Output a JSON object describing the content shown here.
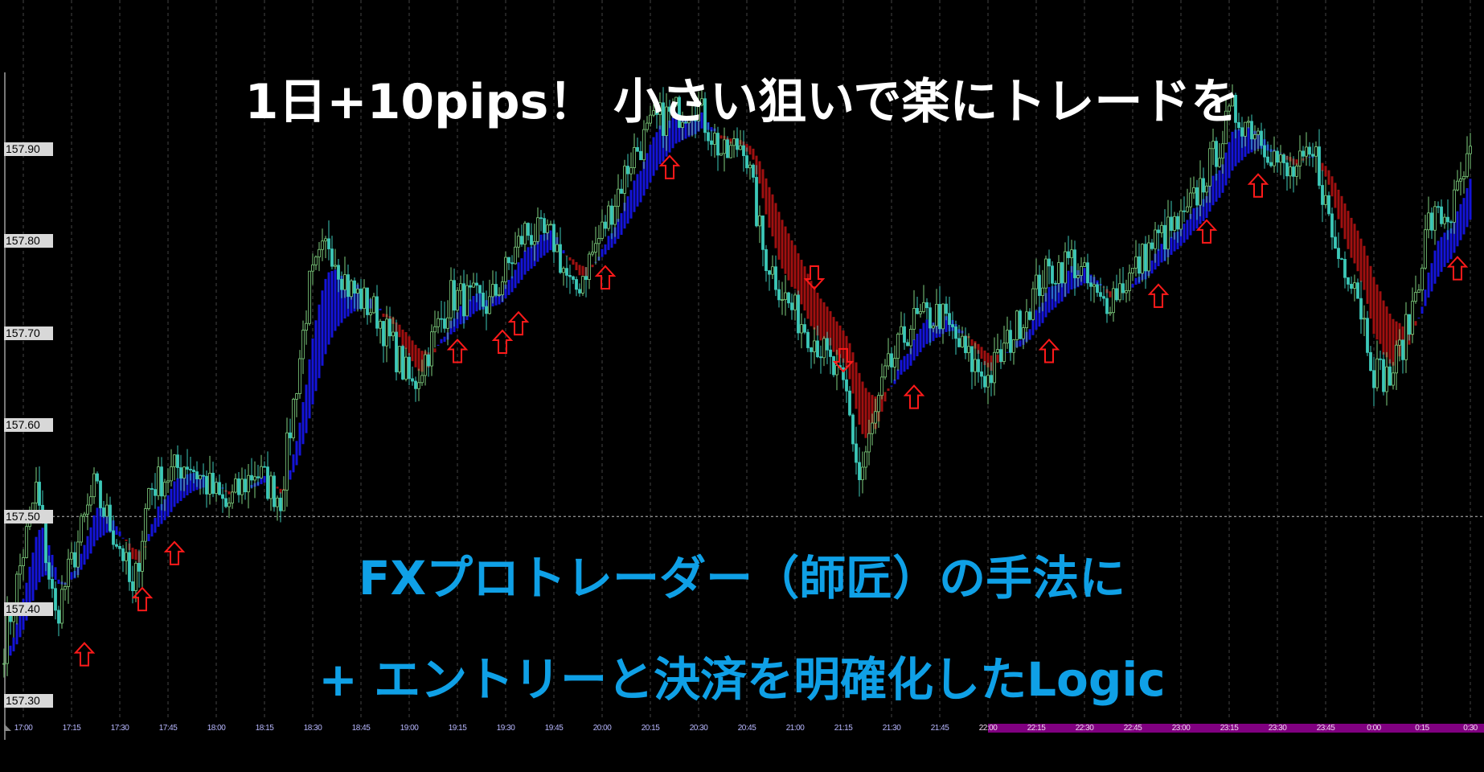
{
  "headline": {
    "top": "1日+10pips！ 小さい狙いで楽にトレードを",
    "line1": "FXプロトレーダー（師匠）の手法に",
    "line2": "+ エントリーと決済を明確化したLogic"
  },
  "colors": {
    "background": "#000000",
    "candle_up": "#7fd07f",
    "candle_down": "#3cc8b8",
    "ribbon_up": "#1414d8",
    "ribbon_down": "#a01010",
    "signal_arrow": "#ff1a1a",
    "headline_top": "#ffffff",
    "headline_sub": "#0fa0e6",
    "session_band": "#800080"
  },
  "chart_data": {
    "type": "candlestick",
    "title": "",
    "xlabel": "",
    "ylabel": "",
    "y_ticks": [
      "157.90",
      "157.80",
      "157.70",
      "157.60",
      "157.50",
      "157.40",
      "157.30"
    ],
    "x_ticks": [
      "17:00",
      "17:15",
      "17:30",
      "17:45",
      "18:00",
      "18:15",
      "18:30",
      "18:45",
      "19:00",
      "19:15",
      "19:30",
      "19:45",
      "20:00",
      "20:15",
      "20:30",
      "20:45",
      "21:00",
      "21:15",
      "21:30",
      "21:45",
      "22:00",
      "22:15",
      "22:30",
      "22:45",
      "23:00",
      "23:15",
      "23:30",
      "23:45",
      "0:00",
      "0:15",
      "0:30"
    ],
    "ylim": [
      157.28,
      158.0
    ],
    "highlight_line": 157.5,
    "session_highlight_from": "22:00",
    "grid": "vertical dashed",
    "price_path": [
      [
        "16:54",
        157.36
      ],
      [
        "17:04",
        157.53
      ],
      [
        "17:10",
        157.39
      ],
      [
        "17:22",
        157.53
      ],
      [
        "17:31",
        157.46
      ],
      [
        "17:34",
        157.41
      ],
      [
        "17:39",
        157.53
      ],
      [
        "17:51",
        157.56
      ],
      [
        "18:03",
        157.51
      ],
      [
        "18:12",
        157.55
      ],
      [
        "18:20",
        157.52
      ],
      [
        "18:29",
        157.75
      ],
      [
        "18:35",
        157.8
      ],
      [
        "18:41",
        157.75
      ],
      [
        "18:50",
        157.72
      ],
      [
        "19:01",
        157.64
      ],
      [
        "19:07",
        157.69
      ],
      [
        "19:13",
        157.74
      ],
      [
        "19:25",
        157.73
      ],
      [
        "19:36",
        157.81
      ],
      [
        "19:45",
        157.8
      ],
      [
        "19:51",
        157.74
      ],
      [
        "20:00",
        157.81
      ],
      [
        "20:09",
        157.89
      ],
      [
        "20:17",
        157.93
      ],
      [
        "20:29",
        157.95
      ],
      [
        "20:38",
        157.89
      ],
      [
        "20:44",
        157.91
      ],
      [
        "20:50",
        157.79
      ],
      [
        "20:58",
        157.73
      ],
      [
        "21:07",
        157.69
      ],
      [
        "21:16",
        157.63
      ],
      [
        "21:20",
        157.54
      ],
      [
        "21:28",
        157.65
      ],
      [
        "21:36",
        157.71
      ],
      [
        "21:45",
        157.72
      ],
      [
        "21:54",
        157.67
      ],
      [
        "22:00",
        157.65
      ],
      [
        "22:08",
        157.7
      ],
      [
        "22:17",
        157.76
      ],
      [
        "22:26",
        157.78
      ],
      [
        "22:35",
        157.73
      ],
      [
        "22:44",
        157.76
      ],
      [
        "22:52",
        157.8
      ],
      [
        "23:01",
        157.82
      ],
      [
        "23:10",
        157.89
      ],
      [
        "23:16",
        157.94
      ],
      [
        "23:24",
        157.92
      ],
      [
        "23:33",
        157.87
      ],
      [
        "23:42",
        157.89
      ],
      [
        "23:48",
        157.79
      ],
      [
        "23:54",
        157.76
      ],
      [
        "0:00",
        157.66
      ],
      [
        "0:05",
        157.65
      ],
      [
        "0:11",
        157.71
      ],
      [
        "0:17",
        157.82
      ],
      [
        "0:24",
        157.83
      ],
      [
        "0:30",
        157.89
      ]
    ],
    "signals": [
      {
        "dir": "up",
        "time": "17:19",
        "price": 157.35
      },
      {
        "dir": "up",
        "time": "17:37",
        "price": 157.41
      },
      {
        "dir": "up",
        "time": "17:47",
        "price": 157.46
      },
      {
        "dir": "up",
        "time": "19:15",
        "price": 157.68
      },
      {
        "dir": "up",
        "time": "19:29",
        "price": 157.69
      },
      {
        "dir": "up",
        "time": "19:34",
        "price": 157.71
      },
      {
        "dir": "up",
        "time": "20:01",
        "price": 157.76
      },
      {
        "dir": "up",
        "time": "20:21",
        "price": 157.88
      },
      {
        "dir": "down",
        "time": "21:06",
        "price": 157.76
      },
      {
        "dir": "down",
        "time": "21:15",
        "price": 157.67
      },
      {
        "dir": "up",
        "time": "21:37",
        "price": 157.63
      },
      {
        "dir": "up",
        "time": "22:19",
        "price": 157.68
      },
      {
        "dir": "up",
        "time": "22:53",
        "price": 157.74
      },
      {
        "dir": "up",
        "time": "23:08",
        "price": 157.81
      },
      {
        "dir": "up",
        "time": "23:24",
        "price": 157.86
      },
      {
        "dir": "up",
        "time": "0:26",
        "price": 157.77
      }
    ]
  }
}
